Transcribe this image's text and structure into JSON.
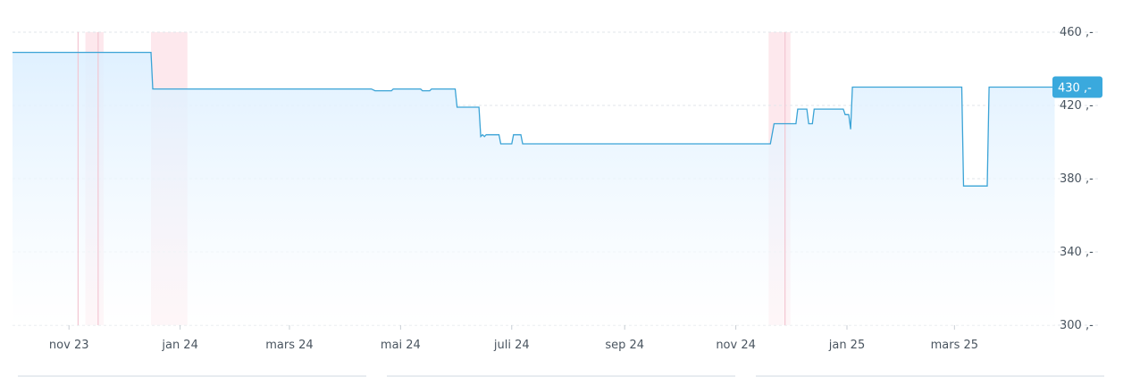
{
  "chart_data": {
    "type": "area",
    "title": "",
    "xlabel": "",
    "ylabel": "",
    "x_ticks": [
      "nov 23",
      "jan 24",
      "mars 24",
      "mai 24",
      "juli 24",
      "sep 24",
      "nov 24",
      "jan 25",
      "mars 25"
    ],
    "y_ticks": [
      "460 ,-",
      "420 ,-",
      "380 ,-",
      "340 ,-",
      "300 ,-"
    ],
    "ylim": [
      300,
      460
    ],
    "grid": true,
    "current_value_label": "430 ,-",
    "current_value": 430,
    "series": [
      {
        "values": [
          {
            "x": "2023-10-01",
            "y": 449
          },
          {
            "x": "2023-12-16",
            "y": 449
          },
          {
            "x": "2023-12-17",
            "y": 429
          },
          {
            "x": "2024-04-15",
            "y": 429
          },
          {
            "x": "2024-04-17",
            "y": 428
          },
          {
            "x": "2024-04-26",
            "y": 428
          },
          {
            "x": "2024-04-27",
            "y": 429
          },
          {
            "x": "2024-05-12",
            "y": 429
          },
          {
            "x": "2024-05-13",
            "y": 428
          },
          {
            "x": "2024-05-17",
            "y": 428
          },
          {
            "x": "2024-05-18",
            "y": 429
          },
          {
            "x": "2024-05-31",
            "y": 429
          },
          {
            "x": "2024-06-01",
            "y": 419
          },
          {
            "x": "2024-06-13",
            "y": 419
          },
          {
            "x": "2024-06-14",
            "y": 403
          },
          {
            "x": "2024-06-15",
            "y": 404
          },
          {
            "x": "2024-06-16",
            "y": 403
          },
          {
            "x": "2024-06-17",
            "y": 404
          },
          {
            "x": "2024-06-24",
            "y": 404
          },
          {
            "x": "2024-06-25",
            "y": 399
          },
          {
            "x": "2024-07-01",
            "y": 399
          },
          {
            "x": "2024-07-02",
            "y": 404
          },
          {
            "x": "2024-07-06",
            "y": 404
          },
          {
            "x": "2024-07-07",
            "y": 399
          },
          {
            "x": "2024-11-20",
            "y": 399
          },
          {
            "x": "2024-11-22",
            "y": 410
          },
          {
            "x": "2024-12-04",
            "y": 410
          },
          {
            "x": "2024-12-05",
            "y": 418
          },
          {
            "x": "2024-12-10",
            "y": 418
          },
          {
            "x": "2024-12-11",
            "y": 410
          },
          {
            "x": "2024-12-13",
            "y": 410
          },
          {
            "x": "2024-12-14",
            "y": 418
          },
          {
            "x": "2024-12-30",
            "y": 418
          },
          {
            "x": "2024-12-31",
            "y": 415
          },
          {
            "x": "2025-01-02",
            "y": 415
          },
          {
            "x": "2025-01-03",
            "y": 407
          },
          {
            "x": "2025-01-04",
            "y": 430
          },
          {
            "x": "2025-03-05",
            "y": 430
          },
          {
            "x": "2025-03-06",
            "y": 376
          },
          {
            "x": "2025-03-19",
            "y": 376
          },
          {
            "x": "2025-03-20",
            "y": 430
          },
          {
            "x": "2025-04-25",
            "y": 430
          }
        ]
      }
    ],
    "highlight_ranges": [
      [
        "2023-11-10",
        "2023-11-20"
      ],
      [
        "2023-12-16",
        "2024-01-05"
      ],
      [
        "2024-11-19",
        "2024-12-01"
      ]
    ],
    "marker_lines": [
      "2023-11-06",
      "2023-11-17",
      "2024-11-28"
    ],
    "colors": {
      "line": "#3aa3d6",
      "fill_top": "#dcefff",
      "fill_bottom": "#ffffff",
      "highlight": "#fde4ea",
      "badge": "#3aa9dd",
      "grid": "#e2e6ea",
      "text": "#4a5560"
    }
  }
}
